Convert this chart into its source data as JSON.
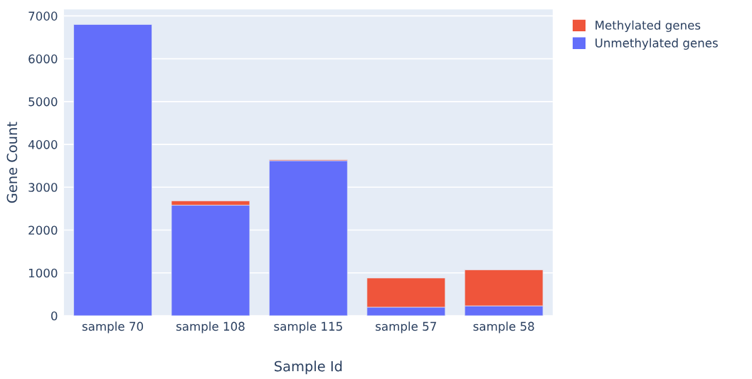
{
  "chart_data": {
    "type": "bar",
    "xlabel": "Sample Id",
    "ylabel": "Gene Count",
    "categories": [
      "sample 70",
      "sample 108",
      "sample 115",
      "sample 57",
      "sample 58"
    ],
    "series": [
      {
        "name": "Unmethylated genes",
        "color": "#636efa",
        "values": [
          6800,
          2580,
          3620,
          200,
          230
        ]
      },
      {
        "name": "Methylated genes",
        "color": "#ef553b",
        "values": [
          null,
          100,
          20,
          680,
          840
        ]
      }
    ],
    "stacked": true,
    "ylim": [
      0,
      7150
    ],
    "yticks": [
      0,
      1000,
      2000,
      3000,
      4000,
      5000,
      6000,
      7000
    ],
    "grid": "y",
    "legend": "top right"
  }
}
